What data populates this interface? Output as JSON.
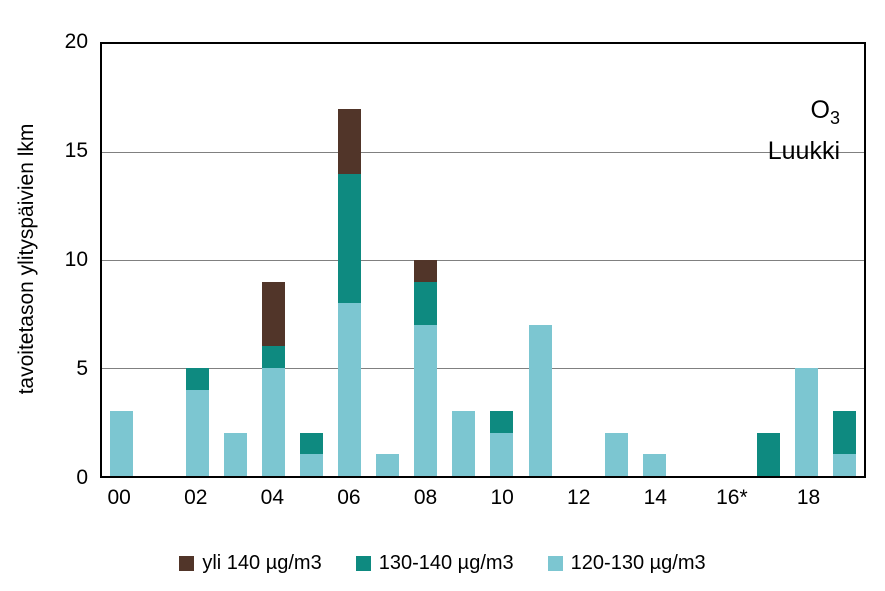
{
  "title_block": {
    "pollutant_base": "O",
    "pollutant_sub": "3",
    "station": "Luukki"
  },
  "axes": {
    "y_title": "tavoitetason ylityspäivien lkm",
    "y_ticks": [
      20,
      15,
      10,
      5,
      0
    ],
    "y_max": 20,
    "x_tick_labels": [
      "00",
      "02",
      "04",
      "06",
      "08",
      "10",
      "12",
      "14",
      "16*",
      "18"
    ]
  },
  "legend": {
    "items": [
      {
        "label": "yli 140 µg/m3",
        "color": "#513529"
      },
      {
        "label": "130-140 µg/m3",
        "color": "#0e8a80"
      },
      {
        "label": "120-130 µg/m3",
        "color": "#7cc6d1"
      }
    ]
  },
  "chart_data": {
    "type": "bar",
    "stacked": true,
    "title": "O3 Luukki",
    "ylabel": "tavoitetason ylityspäivien lkm",
    "xlabel": "",
    "ylim": [
      0,
      20
    ],
    "gridlines": [
      5,
      10,
      15
    ],
    "legend_position": "bottom",
    "categories": [
      "00",
      "01",
      "02",
      "03",
      "04",
      "05",
      "06",
      "07",
      "08",
      "09",
      "10",
      "11",
      "12",
      "13",
      "14",
      "15",
      "16*",
      "17",
      "18",
      "19"
    ],
    "series": [
      {
        "name": "120-130 µg/m3",
        "color": "#7cc6d1",
        "values": [
          3,
          0,
          4,
          2,
          5,
          1,
          8,
          1,
          7,
          3,
          2,
          7,
          0,
          2,
          1,
          0,
          0,
          0,
          5,
          1
        ]
      },
      {
        "name": "130-140 µg/m3",
        "color": "#0e8a80",
        "values": [
          0,
          0,
          1,
          0,
          1,
          1,
          6,
          0,
          2,
          0,
          1,
          0,
          0,
          0,
          0,
          0,
          0,
          2,
          0,
          2
        ]
      },
      {
        "name": "yli 140 µg/m3",
        "color": "#513529",
        "values": [
          0,
          0,
          0,
          0,
          3,
          0,
          3,
          0,
          1,
          0,
          0,
          0,
          0,
          0,
          0,
          0,
          0,
          0,
          0,
          0
        ]
      }
    ],
    "totals": [
      3,
      0,
      5,
      2,
      9,
      2,
      17,
      1,
      10,
      3,
      3,
      7,
      0,
      2,
      1,
      0,
      0,
      2,
      5,
      3
    ]
  }
}
